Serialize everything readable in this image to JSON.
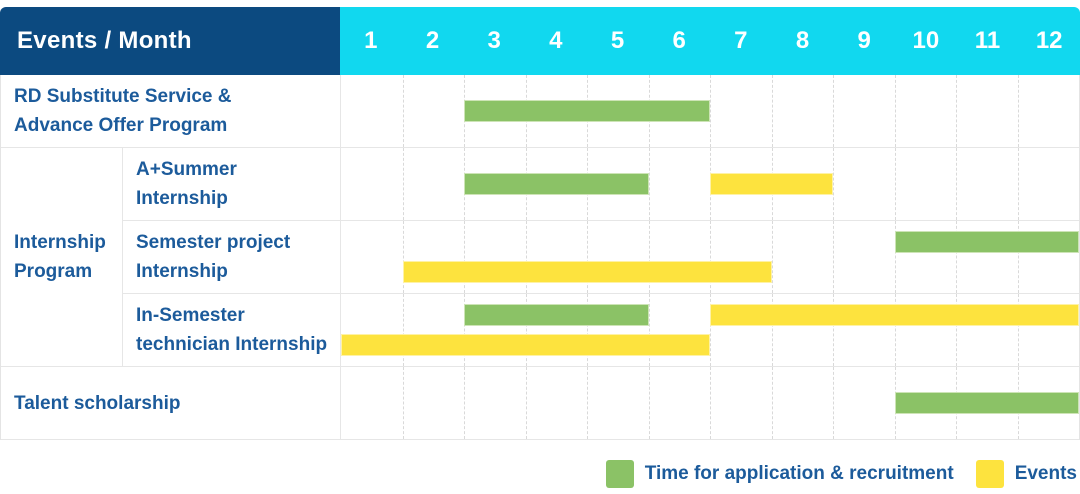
{
  "header": {
    "corner_label": "Events / Month",
    "months": [
      "1",
      "2",
      "3",
      "4",
      "5",
      "6",
      "7",
      "8",
      "9",
      "10",
      "11",
      "12"
    ]
  },
  "colors": {
    "header_bg": "#0c4a80",
    "months_bg": "#11d8ef",
    "application_green": "#8bc266",
    "event_yellow": "#fde33e",
    "label_text": "#1c5b9b"
  },
  "legend": {
    "items": [
      {
        "key": "application",
        "label": "Time for application & recruitment",
        "color": "#8bc266"
      },
      {
        "key": "event",
        "label": "Events",
        "color": "#fde33e"
      }
    ]
  },
  "chart_data": {
    "type": "table",
    "subtype": "gantt",
    "title": "Events / Month",
    "x_categories": [
      "1",
      "2",
      "3",
      "4",
      "5",
      "6",
      "7",
      "8",
      "9",
      "10",
      "11",
      "12"
    ],
    "x_range": [
      1,
      12
    ],
    "grid": true,
    "legend_position": "bottom-right",
    "series_legend": [
      {
        "name": "Time for application & recruitment",
        "color": "#8bc266",
        "kind": "application"
      },
      {
        "name": "Events",
        "color": "#fde33e",
        "kind": "event"
      }
    ],
    "rows": [
      {
        "group": "",
        "label": "RD Substitute Service &\nAdvance Offer Program",
        "lines": 1,
        "bars": [
          {
            "kind": "application",
            "start_month": 3,
            "end_month": 6,
            "line": 0
          }
        ]
      },
      {
        "group": "Internship\nProgram",
        "label": "A+Summer\nInternship",
        "lines": 1,
        "bars": [
          {
            "kind": "application",
            "start_month": 3,
            "end_month": 5,
            "line": 0
          },
          {
            "kind": "event",
            "start_month": 7,
            "end_month": 8,
            "line": 0
          }
        ]
      },
      {
        "group": "Internship\nProgram",
        "label": "Semester project\nInternship",
        "lines": 2,
        "bars": [
          {
            "kind": "application",
            "start_month": 10,
            "end_month": 12,
            "line": 0
          },
          {
            "kind": "event",
            "start_month": 2,
            "end_month": 7,
            "line": 1
          }
        ]
      },
      {
        "group": "Internship\nProgram",
        "label": "In-Semester\ntechnician Internship",
        "lines": 2,
        "bars": [
          {
            "kind": "application",
            "start_month": 3,
            "end_month": 5,
            "line": 0
          },
          {
            "kind": "event",
            "start_month": 7,
            "end_month": 12,
            "line": 0
          },
          {
            "kind": "event",
            "start_month": 1,
            "end_month": 6,
            "line": 1
          }
        ]
      },
      {
        "group": "",
        "label": "Talent scholarship",
        "lines": 1,
        "bars": [
          {
            "kind": "application",
            "start_month": 10,
            "end_month": 12,
            "line": 0
          }
        ]
      }
    ]
  }
}
